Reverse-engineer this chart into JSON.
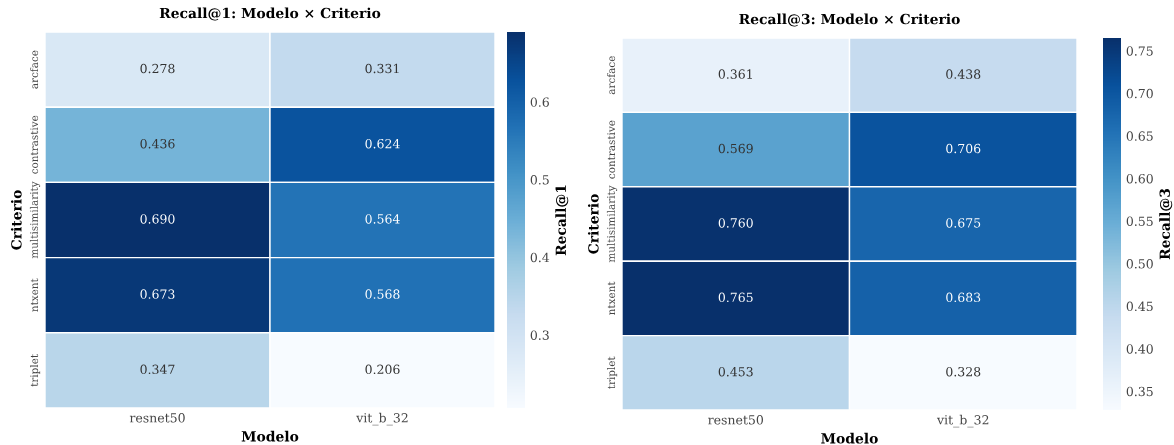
{
  "chart_data": [
    {
      "type": "heatmap",
      "title": "Recall@1: Modelo × Criterio",
      "xlabel": "Modelo",
      "ylabel": "Criterio",
      "clabel": "Recall@1",
      "categories": [
        "resnet50",
        "vit_b_32"
      ],
      "y_categories": [
        "arcface",
        "contrastive",
        "multisimilarity",
        "ntxent",
        "triplet"
      ],
      "cells": [
        [
          0.278,
          0.331
        ],
        [
          0.436,
          0.624
        ],
        [
          0.69,
          0.564
        ],
        [
          0.673,
          0.568
        ],
        [
          0.347,
          0.206
        ]
      ],
      "cell_labels": [
        [
          "0.278",
          "0.331"
        ],
        [
          "0.436",
          "0.624"
        ],
        [
          "0.690",
          "0.564"
        ],
        [
          "0.673",
          "0.568"
        ],
        [
          "0.347",
          "0.206"
        ]
      ],
      "clim": [
        0.206,
        0.69
      ],
      "cticks": [
        0.3,
        0.4,
        0.5,
        0.6
      ]
    },
    {
      "type": "heatmap",
      "title": "Recall@3: Modelo × Criterio",
      "xlabel": "Modelo",
      "ylabel": "Criterio",
      "clabel": "Recall@3",
      "categories": [
        "resnet50",
        "vit_b_32"
      ],
      "y_categories": [
        "arcface",
        "contrastive",
        "multisimilarity",
        "ntxent",
        "triplet"
      ],
      "cells": [
        [
          0.361,
          0.438
        ],
        [
          0.569,
          0.706
        ],
        [
          0.76,
          0.675
        ],
        [
          0.765,
          0.683
        ],
        [
          0.453,
          0.328
        ]
      ],
      "cell_labels": [
        [
          "0.361",
          "0.438"
        ],
        [
          "0.569",
          "0.706"
        ],
        [
          "0.760",
          "0.675"
        ],
        [
          "0.765",
          "0.683"
        ],
        [
          "0.453",
          "0.328"
        ]
      ],
      "clim": [
        0.328,
        0.765
      ],
      "cticks": [
        0.35,
        {
          "value": 0.4,
          "label": "0.40"
        },
        0.45,
        {
          "value": 0.5,
          "label": "0.50"
        },
        0.55,
        {
          "value": 0.6,
          "label": "0.60"
        },
        0.65,
        {
          "value": 0.7,
          "label": "0.70"
        },
        0.75
      ]
    }
  ]
}
